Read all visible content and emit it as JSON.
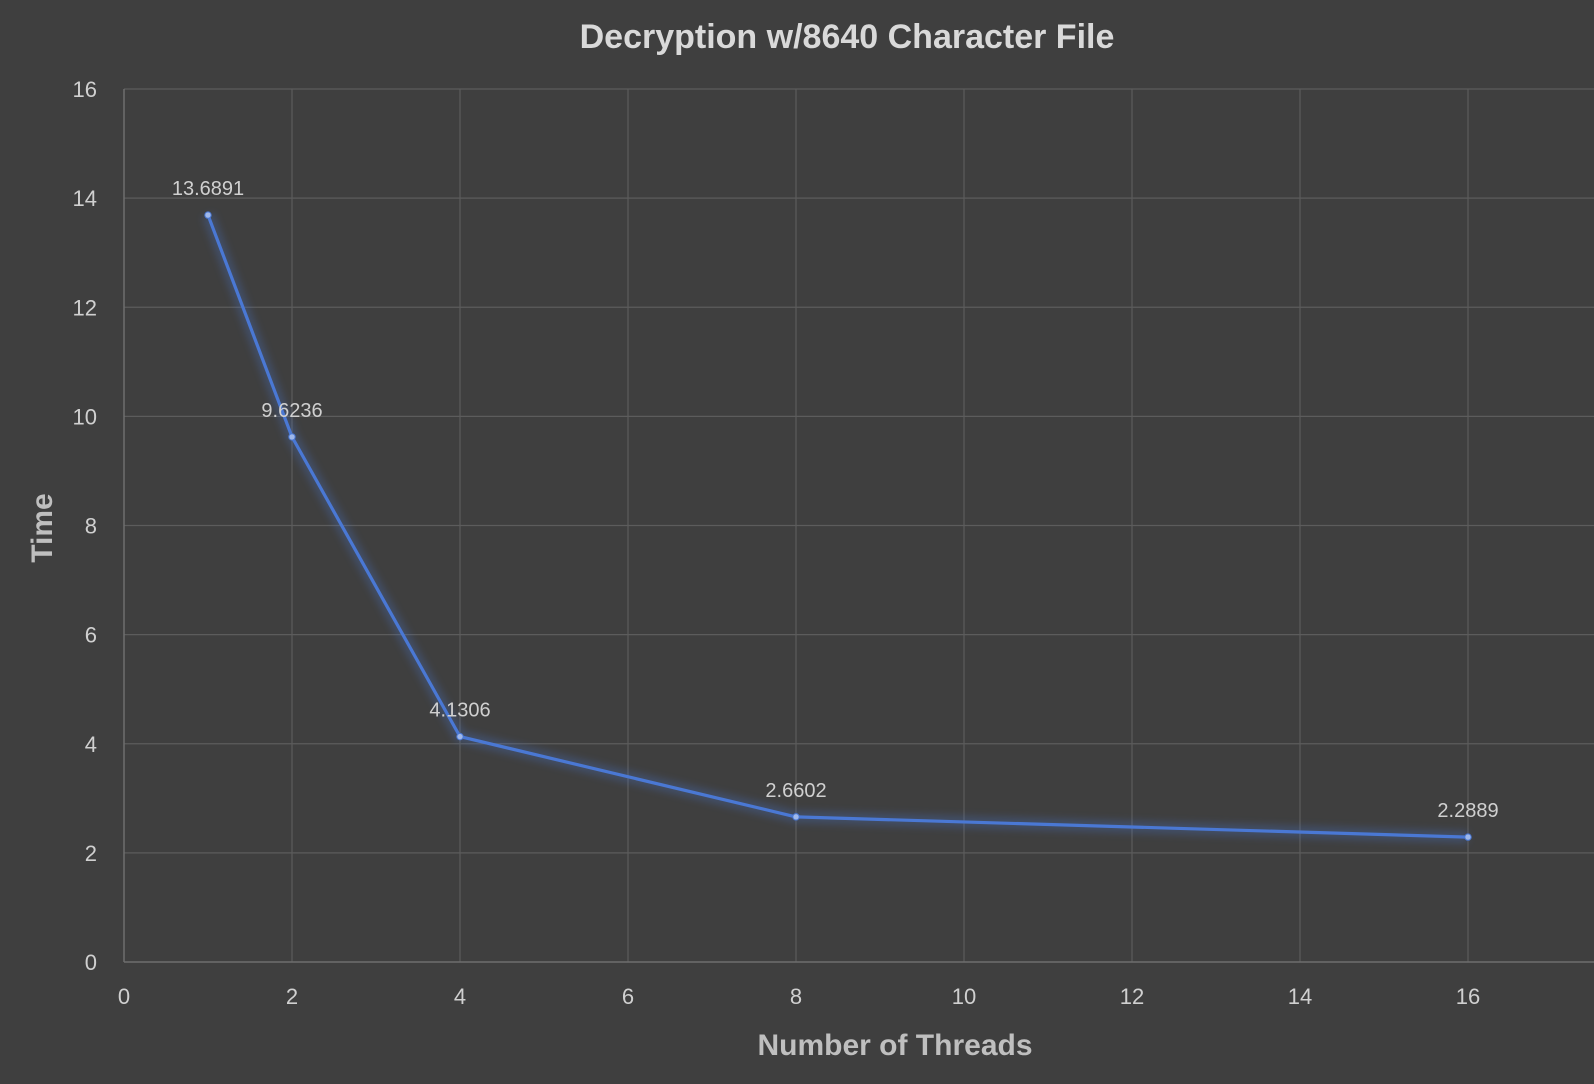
{
  "chart_data": {
    "type": "scatter",
    "title": "Decryption w/8640 Character File",
    "xlabel": "Number of Threads",
    "ylabel": "Time",
    "xlim": [
      0,
      17.5
    ],
    "ylim": [
      0,
      16
    ],
    "x_ticks": [
      0,
      2,
      4,
      6,
      8,
      10,
      12,
      14,
      16
    ],
    "y_ticks": [
      0,
      2,
      4,
      6,
      8,
      10,
      12,
      14,
      16
    ],
    "grid": true,
    "legend": "none",
    "series": [
      {
        "x": [
          1,
          2,
          4,
          8,
          16
        ],
        "y": [
          13.6891,
          9.6236,
          4.1306,
          2.6602,
          2.2889
        ],
        "labels": [
          "13.6891",
          "9.6236",
          "4.1306",
          "2.6602",
          "2.2889"
        ],
        "color": "#4a78d4"
      }
    ],
    "colors": {
      "background": "#3f3f3f",
      "grid": "#5c5c5c",
      "series": "#4a78d4"
    }
  }
}
